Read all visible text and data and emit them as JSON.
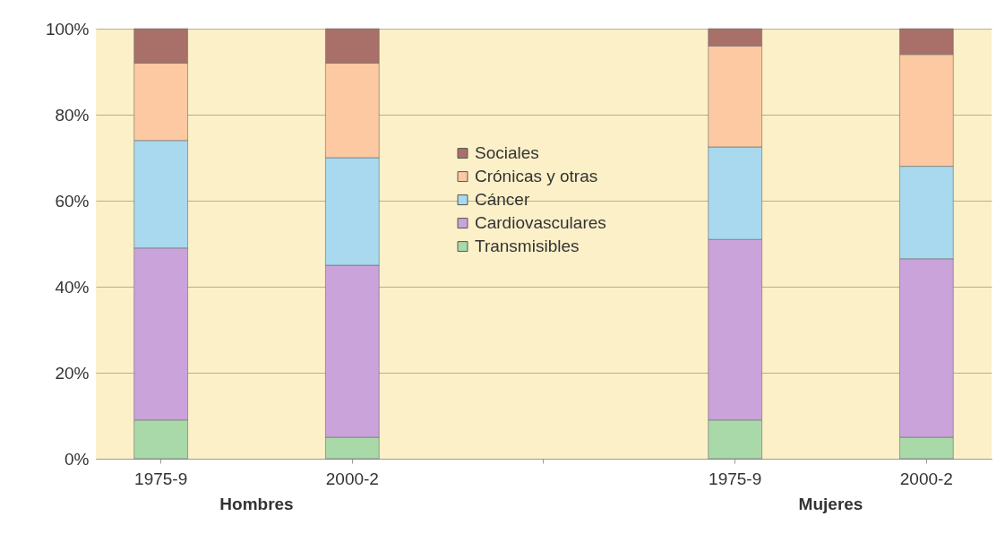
{
  "chart_data": {
    "type": "bar",
    "stacked": true,
    "categories": [
      "1975-9",
      "2000-2",
      null,
      "1975-9",
      "2000-2"
    ],
    "series": [
      {
        "name": "Transmisibles",
        "color": "#a9d9a9",
        "values": [
          9,
          5,
          null,
          9,
          5
        ]
      },
      {
        "name": "Cardiovasculares",
        "color": "#c9a3da",
        "values": [
          40,
          40,
          null,
          42,
          41.5
        ]
      },
      {
        "name": "Cáncer",
        "color": "#a9d9ee",
        "values": [
          25,
          25,
          null,
          21.5,
          21.5
        ]
      },
      {
        "name": "Crónicas y otras",
        "color": "#fcc9a2",
        "values": [
          18,
          22,
          null,
          23.5,
          26
        ]
      },
      {
        "name": "Sociales",
        "color": "#a87068",
        "values": [
          8,
          8,
          null,
          4,
          6
        ]
      }
    ],
    "ylim": [
      0,
      100
    ],
    "yticks": [
      {
        "value": 0,
        "label": "0%"
      },
      {
        "value": 20,
        "label": "20%"
      },
      {
        "value": 40,
        "label": "40%"
      },
      {
        "value": 60,
        "label": "60%"
      },
      {
        "value": 80,
        "label": "80%"
      },
      {
        "value": 100,
        "label": "100%"
      }
    ],
    "grid": "y",
    "legend": "top",
    "annotations": [
      "Hombres",
      "Mujeres"
    ]
  }
}
